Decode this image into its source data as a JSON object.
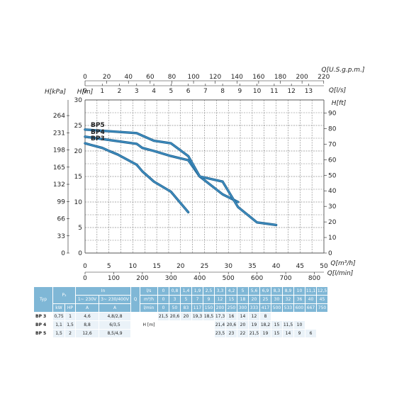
{
  "chart_data": {
    "type": "line",
    "axes": {
      "left_kpa": {
        "label": "H[kPa]",
        "ticks": [
          "264",
          "231",
          "198",
          "165",
          "132",
          "99",
          "66",
          "33",
          "0"
        ]
      },
      "left_m": {
        "label": "H[m]",
        "min": 0,
        "max": 30,
        "ticks": [
          "0",
          "5",
          "10",
          "15",
          "20",
          "25",
          "30"
        ]
      },
      "right_ft": {
        "label": "H[ft]",
        "ticks": [
          "0",
          "10",
          "20",
          "30",
          "40",
          "50",
          "60",
          "70",
          "80",
          "90"
        ]
      },
      "top_usgpm": {
        "label": "Q[U.S.g.p.m.]",
        "ticks": [
          "0",
          "20",
          "40",
          "60",
          "80",
          "100",
          "120",
          "140",
          "160",
          "180",
          "200",
          "220"
        ]
      },
      "top_ls": {
        "label": "Q[l/s]",
        "ticks": [
          "0",
          "1",
          "2",
          "3",
          "4",
          "5",
          "6",
          "7",
          "8",
          "9",
          "10",
          "11",
          "12",
          "13"
        ]
      },
      "bottom_m3h": {
        "label": "Q[m³/h]",
        "min": 0,
        "max": 50,
        "ticks": [
          "0",
          "5",
          "10",
          "15",
          "20",
          "25",
          "30",
          "35",
          "40",
          "45",
          "50"
        ]
      },
      "bottom_lmin": {
        "label": "Q[l/min]",
        "ticks": [
          "0",
          "100",
          "200",
          "300",
          "400",
          "500",
          "600",
          "700",
          "800"
        ]
      }
    },
    "grid": true,
    "series": [
      {
        "name": "BP3",
        "x": [
          0,
          3.6,
          5.04,
          6.84,
          10.8,
          12,
          14.4,
          18,
          21.6
        ],
        "y": [
          21.5,
          20.6,
          20,
          19.3,
          17.3,
          16,
          14,
          12,
          8
        ]
      },
      {
        "name": "BP4",
        "x": [
          0,
          10.8,
          12,
          14.4,
          18,
          21.6,
          24,
          28.8,
          32.04
        ],
        "y": [
          22.8,
          21.4,
          20.6,
          20,
          19,
          18.2,
          15,
          11.5,
          10
        ]
      },
      {
        "name": "BP5",
        "x": [
          0,
          10.8,
          12,
          14.4,
          18,
          21.6,
          24,
          28.8,
          32.04,
          36,
          40
        ],
        "y": [
          24.2,
          23.5,
          23,
          22,
          21.5,
          19,
          15,
          14,
          9,
          6,
          5.5
        ]
      }
    ],
    "colors": {
      "line": "#3d8bbd",
      "line_dark": "#1f5f8c",
      "grid": "#555555"
    },
    "label_positions_hint": "BP3 left, BP4 middle, BP5 top"
  },
  "table": {
    "header": {
      "type": "Typ",
      "p2": "P₂",
      "in": "In",
      "v1": "1~ 230V",
      "v3": "3~ 230/400V",
      "q": "Q",
      "unit_kw": "kW",
      "unit_hp": "HP",
      "unit_a1": "A",
      "unit_a3": "A",
      "flow_units": [
        "l/s",
        "m³/h",
        "l/min"
      ],
      "flow_ls": [
        "0",
        "0,8",
        "1,4",
        "1,9",
        "2,5",
        "3,3",
        "4,2",
        "5",
        "5,6",
        "6,9",
        "8,3",
        "8,9",
        "10",
        "11,1",
        "12,5"
      ],
      "flow_m3h": [
        "0",
        "3",
        "5",
        "7",
        "9",
        "12",
        "15",
        "18",
        "20",
        "25",
        "30",
        "32",
        "36",
        "40",
        "45"
      ],
      "flow_lmin": [
        "0",
        "50",
        "83",
        "117",
        "150",
        "200",
        "250",
        "300",
        "333",
        "417",
        "500",
        "533",
        "600",
        "667",
        "750"
      ],
      "h_label": "H [m]"
    },
    "rows": [
      {
        "model": "BP 3",
        "kw": "0,75",
        "hp": "1",
        "a1": "4,6",
        "a3": "4,8/2,8",
        "h": [
          "21,5",
          "20,6",
          "20",
          "19,3",
          "18,5",
          "17,3",
          "16",
          "14",
          "12",
          "8",
          "",
          "",
          "",
          "",
          ""
        ]
      },
      {
        "model": "BP 4",
        "kw": "1,1",
        "hp": "1,5",
        "a1": "8,8",
        "a3": "6/3,5",
        "h": [
          "",
          "",
          "",
          "",
          "",
          "21,4",
          "20,6",
          "20",
          "19",
          "18,2",
          "15",
          "11,5",
          "10",
          "",
          ""
        ]
      },
      {
        "model": "BP 5",
        "kw": "1,5",
        "hp": "2",
        "a1": "12,6",
        "a3": "8,5/4,9",
        "h": [
          "",
          "",
          "",
          "",
          "",
          "23,5",
          "23",
          "22",
          "21,5",
          "19",
          "15",
          "14",
          "9",
          "6",
          ""
        ]
      }
    ]
  }
}
